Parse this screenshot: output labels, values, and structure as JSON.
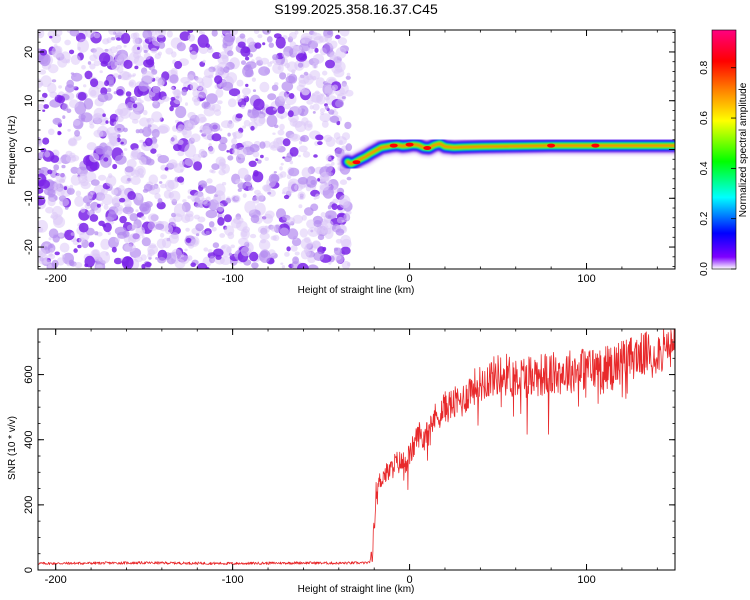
{
  "figure_title": "S199.2025.358.16.37.C45",
  "chart_data": [
    {
      "type": "heatmap",
      "title": "S199.2025.358.16.37.C45",
      "xlabel": "Height of straight line (km)",
      "ylabel": "Frequency (Hz)",
      "xlim": [
        -210,
        150
      ],
      "ylim": [
        -24.5,
        24.5
      ],
      "x_ticks": [
        -200,
        -100,
        0,
        100
      ],
      "y_ticks": [
        -20,
        -10,
        0,
        10,
        20
      ],
      "x_tick_labels": [
        "-200",
        "-100",
        "0",
        "100"
      ],
      "y_tick_labels": [
        "-20",
        "-10",
        "0",
        "10",
        "20"
      ],
      "noise_region_x": [
        -210,
        -34
      ],
      "transition_x": -34,
      "signal_ridge": {
        "x": [
          -35,
          -33,
          -31,
          -28,
          -25,
          -22,
          -19,
          -16,
          -13,
          -10,
          -7,
          -4,
          -1,
          2,
          5,
          8,
          11,
          14,
          17,
          20,
          25,
          30,
          40,
          60,
          80,
          100,
          120,
          150
        ],
        "y": [
          -2.5,
          -3.0,
          -2.6,
          -2.0,
          -1.5,
          -0.8,
          -0.2,
          0.4,
          0.6,
          0.8,
          0.9,
          0.7,
          0.8,
          1.0,
          0.9,
          0.4,
          0.3,
          0.9,
          1.2,
          0.6,
          0.4,
          0.5,
          0.6,
          0.7,
          0.8,
          0.8,
          0.8,
          0.8
        ]
      },
      "colorbar": {
        "label": "Normalized spectral amplitude",
        "range": [
          0.0,
          0.95
        ],
        "ticks": [
          0.0,
          0.2,
          0.4,
          0.6,
          0.8
        ],
        "tick_labels": [
          "0.0",
          "0.2",
          "0.4",
          "0.6",
          "0.8"
        ],
        "stops": [
          "#ffffff",
          "#7f00ff",
          "#0000ff",
          "#00ffff",
          "#00ff00",
          "#ffff00",
          "#ff8000",
          "#ff0000",
          "#ff0080"
        ]
      }
    },
    {
      "type": "line",
      "xlabel": "Height of straight line (km)",
      "ylabel": "SNR (10 * v/v)",
      "xlim": [
        -210,
        150
      ],
      "ylim": [
        0,
        740
      ],
      "x_ticks": [
        -200,
        -100,
        0,
        100
      ],
      "y_ticks": [
        0,
        200,
        400,
        600
      ],
      "x_tick_labels": [
        "-200",
        "-100",
        "0",
        "100"
      ],
      "y_tick_labels": [
        "0",
        "200",
        "400",
        "600"
      ],
      "color": "#e8292b",
      "series": [
        {
          "name": "SNR",
          "x": [
            -210,
            -150,
            -100,
            -60,
            -40,
            -23,
            -21,
            -20,
            -19,
            -17,
            -15,
            -12,
            -10,
            -8,
            -5,
            -3,
            0,
            3,
            5,
            8,
            10,
            15,
            20,
            25,
            30,
            35,
            40,
            45,
            50,
            55,
            60,
            70,
            80,
            90,
            100,
            110,
            120,
            130,
            140,
            150
          ],
          "y": [
            20,
            22,
            20,
            22,
            21,
            22,
            40,
            150,
            240,
            270,
            290,
            300,
            310,
            330,
            330,
            330,
            350,
            390,
            420,
            400,
            450,
            470,
            500,
            510,
            520,
            560,
            570,
            590,
            600,
            600,
            590,
            600,
            600,
            610,
            620,
            620,
            640,
            660,
            670,
            680
          ]
        }
      ]
    }
  ]
}
